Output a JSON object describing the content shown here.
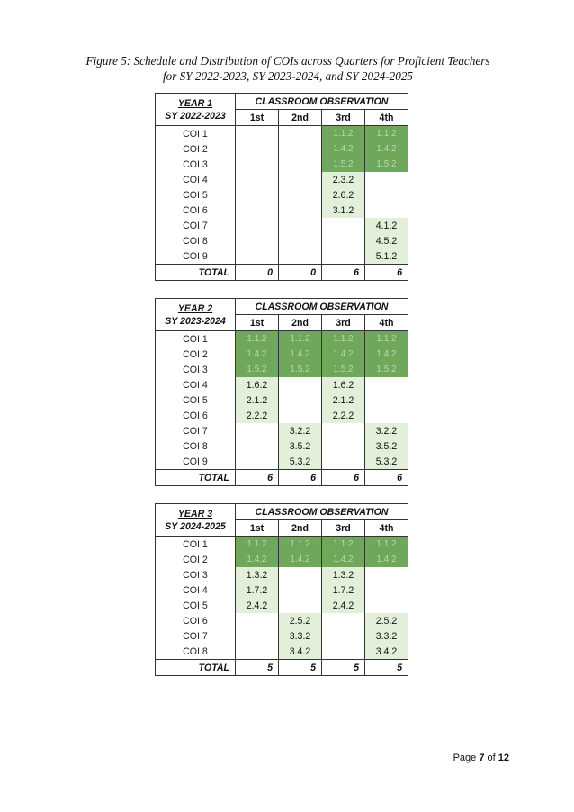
{
  "caption": {
    "line1": "Figure 5: Schedule and Distribution of COIs across Quarters for Proficient Teachers",
    "line2": "for SY 2022-2023, SY 2023-2024, and SY 2024-2025"
  },
  "tables": [
    {
      "year": "YEAR 1",
      "sy": "SY 2022-2023",
      "observation_label": "CLASSROOM OBSERVATION",
      "quarters": [
        "1st",
        "2nd",
        "3rd",
        "4th"
      ],
      "rows": [
        {
          "name": "COI 1",
          "cells": [
            "",
            "",
            "1.1.2",
            "1.1.2"
          ],
          "shade": [
            "",
            "",
            "dark",
            "dark"
          ]
        },
        {
          "name": "COI 2",
          "cells": [
            "",
            "",
            "1.4.2",
            "1.4.2"
          ],
          "shade": [
            "",
            "",
            "dark",
            "dark"
          ]
        },
        {
          "name": "COI 3",
          "cells": [
            "",
            "",
            "1.5.2",
            "1.5.2"
          ],
          "shade": [
            "",
            "",
            "dark",
            "dark"
          ]
        },
        {
          "name": "COI 4",
          "cells": [
            "",
            "",
            "2.3.2",
            ""
          ],
          "shade": [
            "",
            "",
            "light",
            ""
          ]
        },
        {
          "name": "COI 5",
          "cells": [
            "",
            "",
            "2.6.2",
            ""
          ],
          "shade": [
            "",
            "",
            "light",
            ""
          ]
        },
        {
          "name": "COI 6",
          "cells": [
            "",
            "",
            "3.1.2",
            ""
          ],
          "shade": [
            "",
            "",
            "light",
            ""
          ]
        },
        {
          "name": "COI 7",
          "cells": [
            "",
            "",
            "",
            "4.1.2"
          ],
          "shade": [
            "",
            "",
            "",
            "light"
          ]
        },
        {
          "name": "COI 8",
          "cells": [
            "",
            "",
            "",
            "4.5.2"
          ],
          "shade": [
            "",
            "",
            "",
            "light"
          ]
        },
        {
          "name": "COI 9",
          "cells": [
            "",
            "",
            "",
            "5.1.2"
          ],
          "shade": [
            "",
            "",
            "",
            "light"
          ]
        }
      ],
      "total_label": "TOTAL",
      "totals": [
        "0",
        "0",
        "6",
        "6"
      ]
    },
    {
      "year": "YEAR 2",
      "sy": "SY 2023-2024",
      "observation_label": "CLASSROOM OBSERVATION",
      "quarters": [
        "1st",
        "2nd",
        "3rd",
        "4th"
      ],
      "rows": [
        {
          "name": "COI 1",
          "cells": [
            "1.1.2",
            "1.1.2",
            "1.1.2",
            "1.1.2"
          ],
          "shade": [
            "dark",
            "dark",
            "dark",
            "dark"
          ]
        },
        {
          "name": "COI 2",
          "cells": [
            "1.4.2",
            "1.4.2",
            "1.4.2",
            "1.4.2"
          ],
          "shade": [
            "dark",
            "dark",
            "dark",
            "dark"
          ]
        },
        {
          "name": "COI 3",
          "cells": [
            "1.5.2",
            "1.5.2",
            "1.5.2",
            "1.5.2"
          ],
          "shade": [
            "dark",
            "dark",
            "dark",
            "dark"
          ]
        },
        {
          "name": "COI 4",
          "cells": [
            "1.6.2",
            "",
            "1.6.2",
            ""
          ],
          "shade": [
            "light",
            "",
            "light",
            ""
          ]
        },
        {
          "name": "COI 5",
          "cells": [
            "2.1.2",
            "",
            "2.1.2",
            ""
          ],
          "shade": [
            "light",
            "",
            "light",
            ""
          ]
        },
        {
          "name": "COI 6",
          "cells": [
            "2.2.2",
            "",
            "2.2.2",
            ""
          ],
          "shade": [
            "light",
            "",
            "light",
            ""
          ]
        },
        {
          "name": "COI 7",
          "cells": [
            "",
            "3.2.2",
            "",
            "3.2.2"
          ],
          "shade": [
            "",
            "light",
            "",
            "light"
          ]
        },
        {
          "name": "COI 8",
          "cells": [
            "",
            "3.5.2",
            "",
            "3.5.2"
          ],
          "shade": [
            "",
            "light",
            "",
            "light"
          ]
        },
        {
          "name": "COI 9",
          "cells": [
            "",
            "5.3.2",
            "",
            "5.3.2"
          ],
          "shade": [
            "",
            "light",
            "",
            "light"
          ]
        }
      ],
      "total_label": "TOTAL",
      "totals": [
        "6",
        "6",
        "6",
        "6"
      ]
    },
    {
      "year": "YEAR 3",
      "sy": "SY 2024-2025",
      "observation_label": "CLASSROOM OBSERVATION",
      "quarters": [
        "1st",
        "2nd",
        "3rd",
        "4th"
      ],
      "rows": [
        {
          "name": "COI 1",
          "cells": [
            "1.1.2",
            "1.1.2",
            "1.1.2",
            "1.1.2"
          ],
          "shade": [
            "dark",
            "dark",
            "dark",
            "dark"
          ]
        },
        {
          "name": "COI 2",
          "cells": [
            "1.4.2",
            "1.4.2",
            "1.4.2",
            "1.4.2"
          ],
          "shade": [
            "dark",
            "dark",
            "dark",
            "dark"
          ]
        },
        {
          "name": "COI 3",
          "cells": [
            "1.3.2",
            "",
            "1.3.2",
            ""
          ],
          "shade": [
            "light",
            "",
            "light",
            ""
          ]
        },
        {
          "name": "COI 4",
          "cells": [
            "1.7.2",
            "",
            "1.7.2",
            ""
          ],
          "shade": [
            "light",
            "",
            "light",
            ""
          ]
        },
        {
          "name": "COI 5",
          "cells": [
            "2.4.2",
            "",
            "2.4.2",
            ""
          ],
          "shade": [
            "light",
            "",
            "light",
            ""
          ]
        },
        {
          "name": "COI 6",
          "cells": [
            "",
            "2.5.2",
            "",
            "2.5.2"
          ],
          "shade": [
            "",
            "light",
            "",
            "light"
          ]
        },
        {
          "name": "COI 7",
          "cells": [
            "",
            "3.3.2",
            "",
            "3.3.2"
          ],
          "shade": [
            "",
            "light",
            "",
            "light"
          ]
        },
        {
          "name": "COI 8",
          "cells": [
            "",
            "3.4.2",
            "",
            "3.4.2"
          ],
          "shade": [
            "",
            "light",
            "",
            "light"
          ]
        }
      ],
      "total_label": "TOTAL",
      "totals": [
        "5",
        "5",
        "5",
        "5"
      ]
    }
  ],
  "footer": {
    "page_prefix": "Page ",
    "page_current": "7",
    "page_of": " of ",
    "page_total": "12"
  },
  "colors": {
    "dark_shade": "#6fa85a",
    "light_shade": "#e2efd9"
  }
}
